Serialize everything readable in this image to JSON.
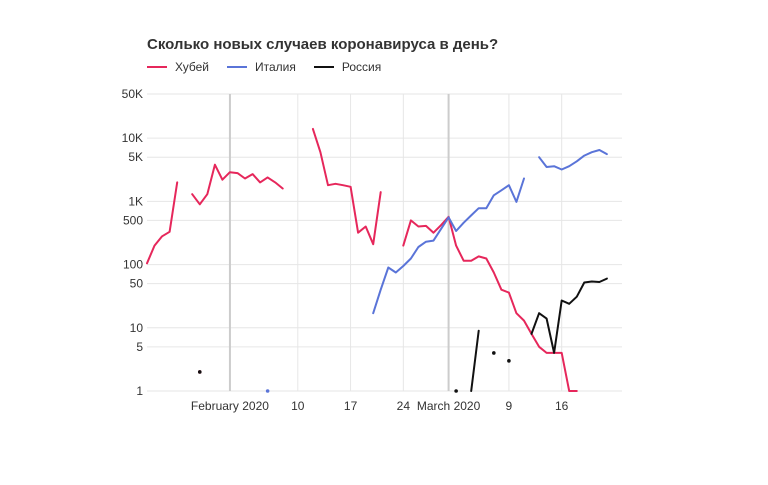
{
  "chart_data": {
    "type": "line",
    "title": "Сколько новых случаев коронавируса в день?",
    "xlabel": "",
    "ylabel": "",
    "y_scale": "log",
    "ylim": [
      1,
      50000
    ],
    "y_ticks": [
      {
        "value": 50000,
        "label": "50K"
      },
      {
        "value": 10000,
        "label": "10K"
      },
      {
        "value": 5000,
        "label": "5K"
      },
      {
        "value": 1000,
        "label": "1K"
      },
      {
        "value": 500,
        "label": "500"
      },
      {
        "value": 100,
        "label": "100"
      },
      {
        "value": 50,
        "label": "50"
      },
      {
        "value": 10,
        "label": "10"
      },
      {
        "value": 5,
        "label": "5"
      },
      {
        "value": 1,
        "label": "1"
      }
    ],
    "xlim": [
      "2020-01-21",
      "2020-03-24"
    ],
    "x_ticks": [
      {
        "date": "2020-02-01",
        "label": "February 2020"
      },
      {
        "date": "2020-02-10",
        "label": "10"
      },
      {
        "date": "2020-02-17",
        "label": "17"
      },
      {
        "date": "2020-02-24",
        "label": "24"
      },
      {
        "date": "2020-03-01",
        "label": "March 2020"
      },
      {
        "date": "2020-03-09",
        "label": "9"
      },
      {
        "date": "2020-03-16",
        "label": "16"
      }
    ],
    "grid": true,
    "legend_position": "top-left",
    "series": [
      {
        "name": "Хубей",
        "color": "#e6275b",
        "points": [
          [
            "2020-01-21",
            105
          ],
          [
            "2020-01-22",
            200
          ],
          [
            "2020-01-23",
            280
          ],
          [
            "2020-01-24",
            330
          ],
          [
            "2020-01-25",
            2000
          ],
          null,
          [
            "2020-01-27",
            1300
          ],
          [
            "2020-01-28",
            900
          ],
          [
            "2020-01-29",
            1300
          ],
          [
            "2020-01-30",
            3800
          ],
          [
            "2020-01-31",
            2200
          ],
          [
            "2020-02-01",
            2900
          ],
          [
            "2020-02-02",
            2800
          ],
          [
            "2020-02-03",
            2300
          ],
          [
            "2020-02-04",
            2700
          ],
          [
            "2020-02-05",
            2000
          ],
          [
            "2020-02-06",
            2400
          ],
          [
            "2020-02-07",
            2000
          ],
          [
            "2020-02-08",
            1600
          ],
          null,
          [
            "2020-02-12",
            14000
          ],
          [
            "2020-02-13",
            6000
          ],
          [
            "2020-02-14",
            1800
          ],
          [
            "2020-02-15",
            1900
          ],
          [
            "2020-02-16",
            1800
          ],
          [
            "2020-02-17",
            1700
          ],
          [
            "2020-02-18",
            320
          ],
          [
            "2020-02-19",
            400
          ],
          [
            "2020-02-20",
            210
          ],
          [
            "2020-02-21",
            1400
          ],
          null,
          [
            "2020-02-24",
            200
          ],
          [
            "2020-02-25",
            500
          ],
          [
            "2020-02-26",
            400
          ],
          [
            "2020-02-27",
            410
          ],
          [
            "2020-02-28",
            320
          ],
          [
            "2020-02-29",
            420
          ],
          [
            "2020-03-01",
            570
          ],
          [
            "2020-03-02",
            200
          ],
          [
            "2020-03-03",
            115
          ],
          [
            "2020-03-04",
            115
          ],
          [
            "2020-03-05",
            135
          ],
          [
            "2020-03-06",
            125
          ],
          [
            "2020-03-07",
            75
          ],
          [
            "2020-03-08",
            40
          ],
          [
            "2020-03-09",
            36
          ],
          [
            "2020-03-10",
            17
          ],
          [
            "2020-03-11",
            13
          ],
          [
            "2020-03-12",
            8
          ],
          [
            "2020-03-13",
            5
          ],
          [
            "2020-03-14",
            4
          ],
          [
            "2020-03-15",
            4
          ],
          [
            "2020-03-16",
            4
          ],
          [
            "2020-03-17",
            1
          ],
          [
            "2020-03-18",
            1
          ]
        ],
        "dots": [
          [
            "2020-01-28",
            2
          ]
        ]
      },
      {
        "name": "Италия",
        "color": "#5a74d8",
        "points": [
          [
            "2020-02-20",
            17
          ],
          [
            "2020-02-21",
            40
          ],
          [
            "2020-02-22",
            90
          ],
          [
            "2020-02-23",
            75
          ],
          [
            "2020-02-24",
            95
          ],
          [
            "2020-02-25",
            125
          ],
          [
            "2020-02-26",
            190
          ],
          [
            "2020-02-27",
            230
          ],
          [
            "2020-02-28",
            240
          ],
          [
            "2020-03-01",
            560
          ],
          [
            "2020-03-02",
            340
          ],
          [
            "2020-03-03",
            460
          ],
          [
            "2020-03-04",
            600
          ],
          [
            "2020-03-05",
            780
          ],
          [
            "2020-03-06",
            780
          ],
          [
            "2020-03-07",
            1250
          ],
          [
            "2020-03-08",
            1500
          ],
          [
            "2020-03-09",
            1800
          ],
          [
            "2020-03-10",
            980
          ],
          [
            "2020-03-11",
            2300
          ],
          null,
          [
            "2020-03-13",
            5000
          ],
          [
            "2020-03-14",
            3500
          ],
          [
            "2020-03-15",
            3600
          ],
          [
            "2020-03-16",
            3200
          ],
          [
            "2020-03-17",
            3600
          ],
          [
            "2020-03-18",
            4300
          ],
          [
            "2020-03-19",
            5300
          ],
          [
            "2020-03-20",
            6000
          ],
          [
            "2020-03-21",
            6500
          ],
          [
            "2020-03-22",
            5600
          ]
        ],
        "dots": [
          [
            "2020-02-06",
            1
          ]
        ]
      },
      {
        "name": "Россия",
        "color": "#111111",
        "points": [
          [
            "2020-03-04",
            1
          ],
          [
            "2020-03-05",
            9
          ],
          null,
          [
            "2020-03-12",
            8
          ],
          [
            "2020-03-13",
            17
          ],
          [
            "2020-03-14",
            14
          ],
          [
            "2020-03-15",
            4
          ],
          [
            "2020-03-16",
            27
          ],
          [
            "2020-03-17",
            24
          ],
          [
            "2020-03-18",
            31
          ],
          [
            "2020-03-19",
            52
          ],
          [
            "2020-03-20",
            54
          ],
          [
            "2020-03-21",
            53
          ],
          [
            "2020-03-22",
            60
          ]
        ],
        "dots": [
          [
            "2020-01-28",
            2
          ],
          [
            "2020-03-02",
            1
          ],
          [
            "2020-03-07",
            4
          ],
          [
            "2020-03-09",
            3
          ]
        ]
      }
    ]
  }
}
